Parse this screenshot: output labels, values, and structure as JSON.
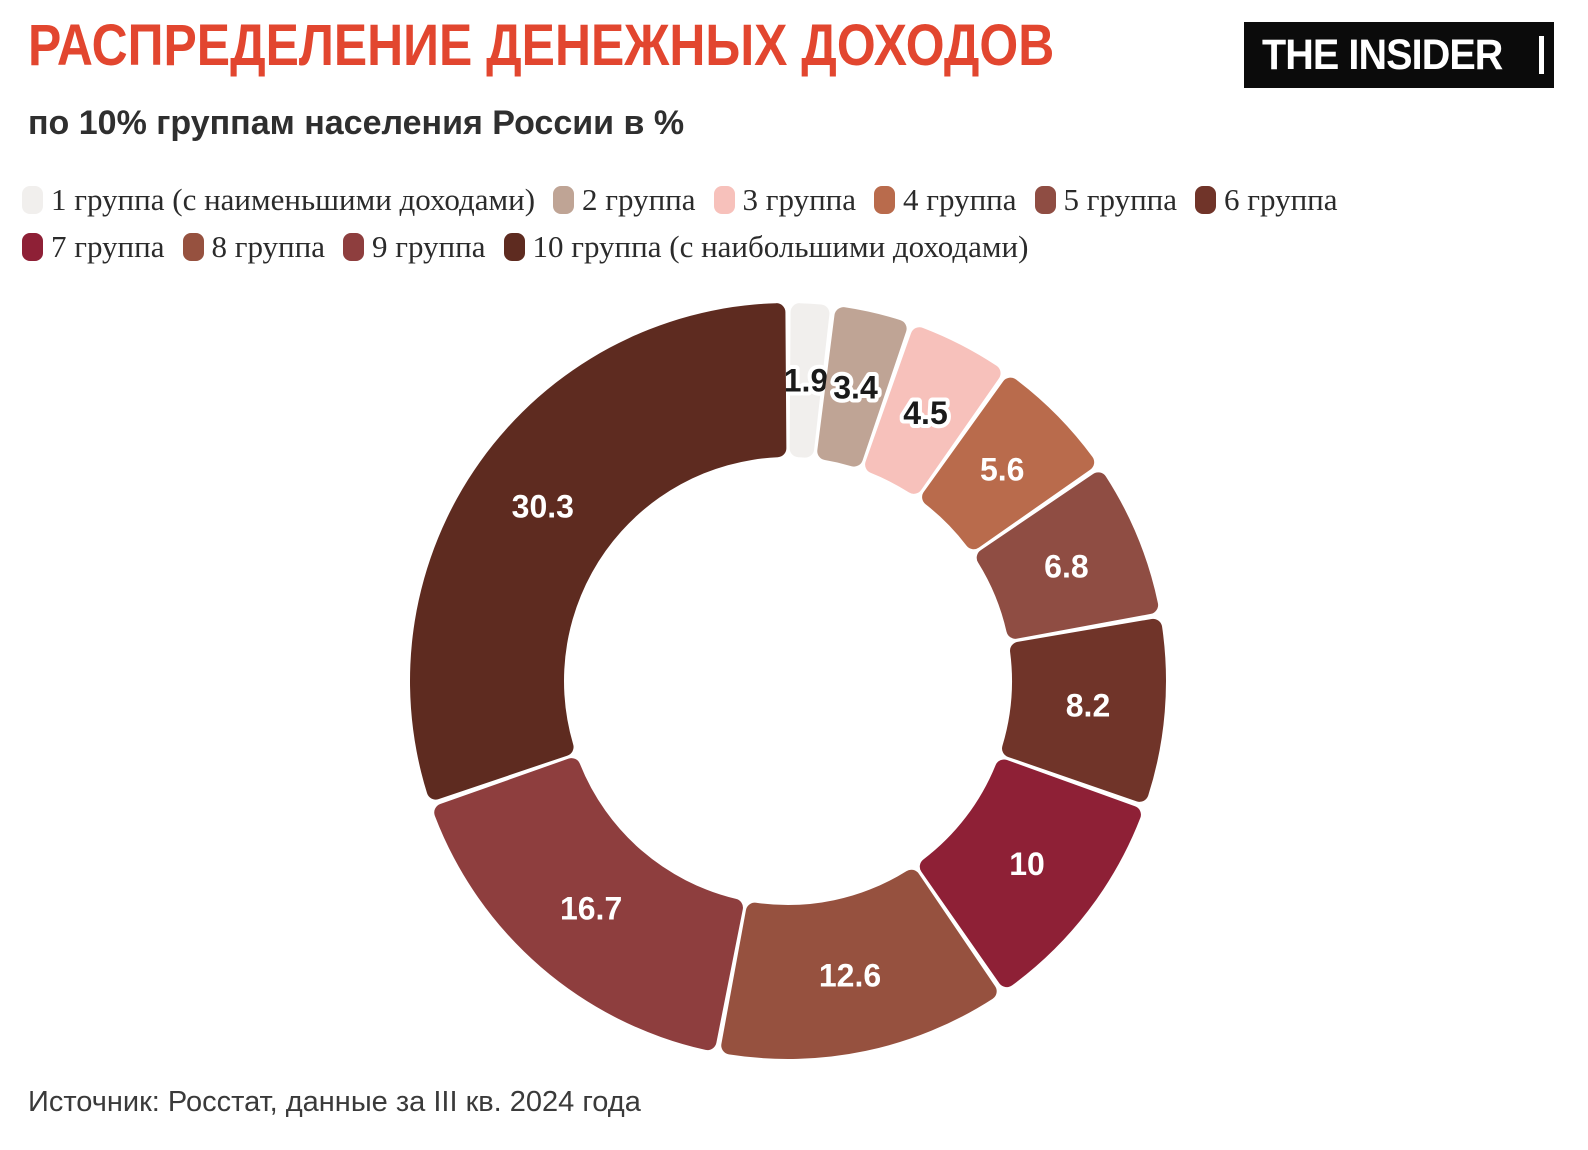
{
  "header": {
    "title": "РАСПРЕДЕЛЕНИЕ ДЕНЕЖНЫХ ДОХОДОВ",
    "subtitle": "по 10% группам населения России в %",
    "title_color": "#E2462F"
  },
  "logo": {
    "text": "THE INSIDER"
  },
  "chart_data": {
    "type": "pie",
    "variant": "donut",
    "title": "РАСПРЕДЕЛЕНИЕ ДЕНЕЖНЫХ ДОХОДОВ",
    "subtitle": "по 10% группам населения России в %",
    "categories": [
      "1 группа (с наименьшими доходами)",
      "2 группа",
      "3 группа",
      "4 группа",
      "5 группа",
      "6 группа",
      "7 группа",
      "8 группа",
      "9 группа",
      "10 группа (с наибольшими доходами)"
    ],
    "values": [
      1.9,
      3.4,
      4.5,
      5.6,
      6.8,
      8.2,
      10,
      12.6,
      16.7,
      30.3
    ],
    "value_labels": [
      "1.9",
      "3.4",
      "4.5",
      "5.6",
      "6.8",
      "8.2",
      "10",
      "12.6",
      "16.7",
      "30.3"
    ],
    "colors": [
      "#F1EFED",
      "#BFA495",
      "#F7C1BB",
      "#B96B4C",
      "#8F4D43",
      "#703429",
      "#8E2036",
      "#96513F",
      "#8E3E3E",
      "#5E2B20"
    ],
    "label_text_colors": [
      "#1a1a1a",
      "#1a1a1a",
      "#1a1a1a",
      "#ffffff",
      "#ffffff",
      "#ffffff",
      "#ffffff",
      "#ffffff",
      "#ffffff",
      "#ffffff"
    ],
    "total": 100,
    "start_angle_deg": 0,
    "direction": "clockwise",
    "legend_position": "top",
    "legend_rows": [
      6,
      4
    ]
  },
  "source": {
    "text": "Источник: Росстат, данные за III кв. 2024 года"
  }
}
